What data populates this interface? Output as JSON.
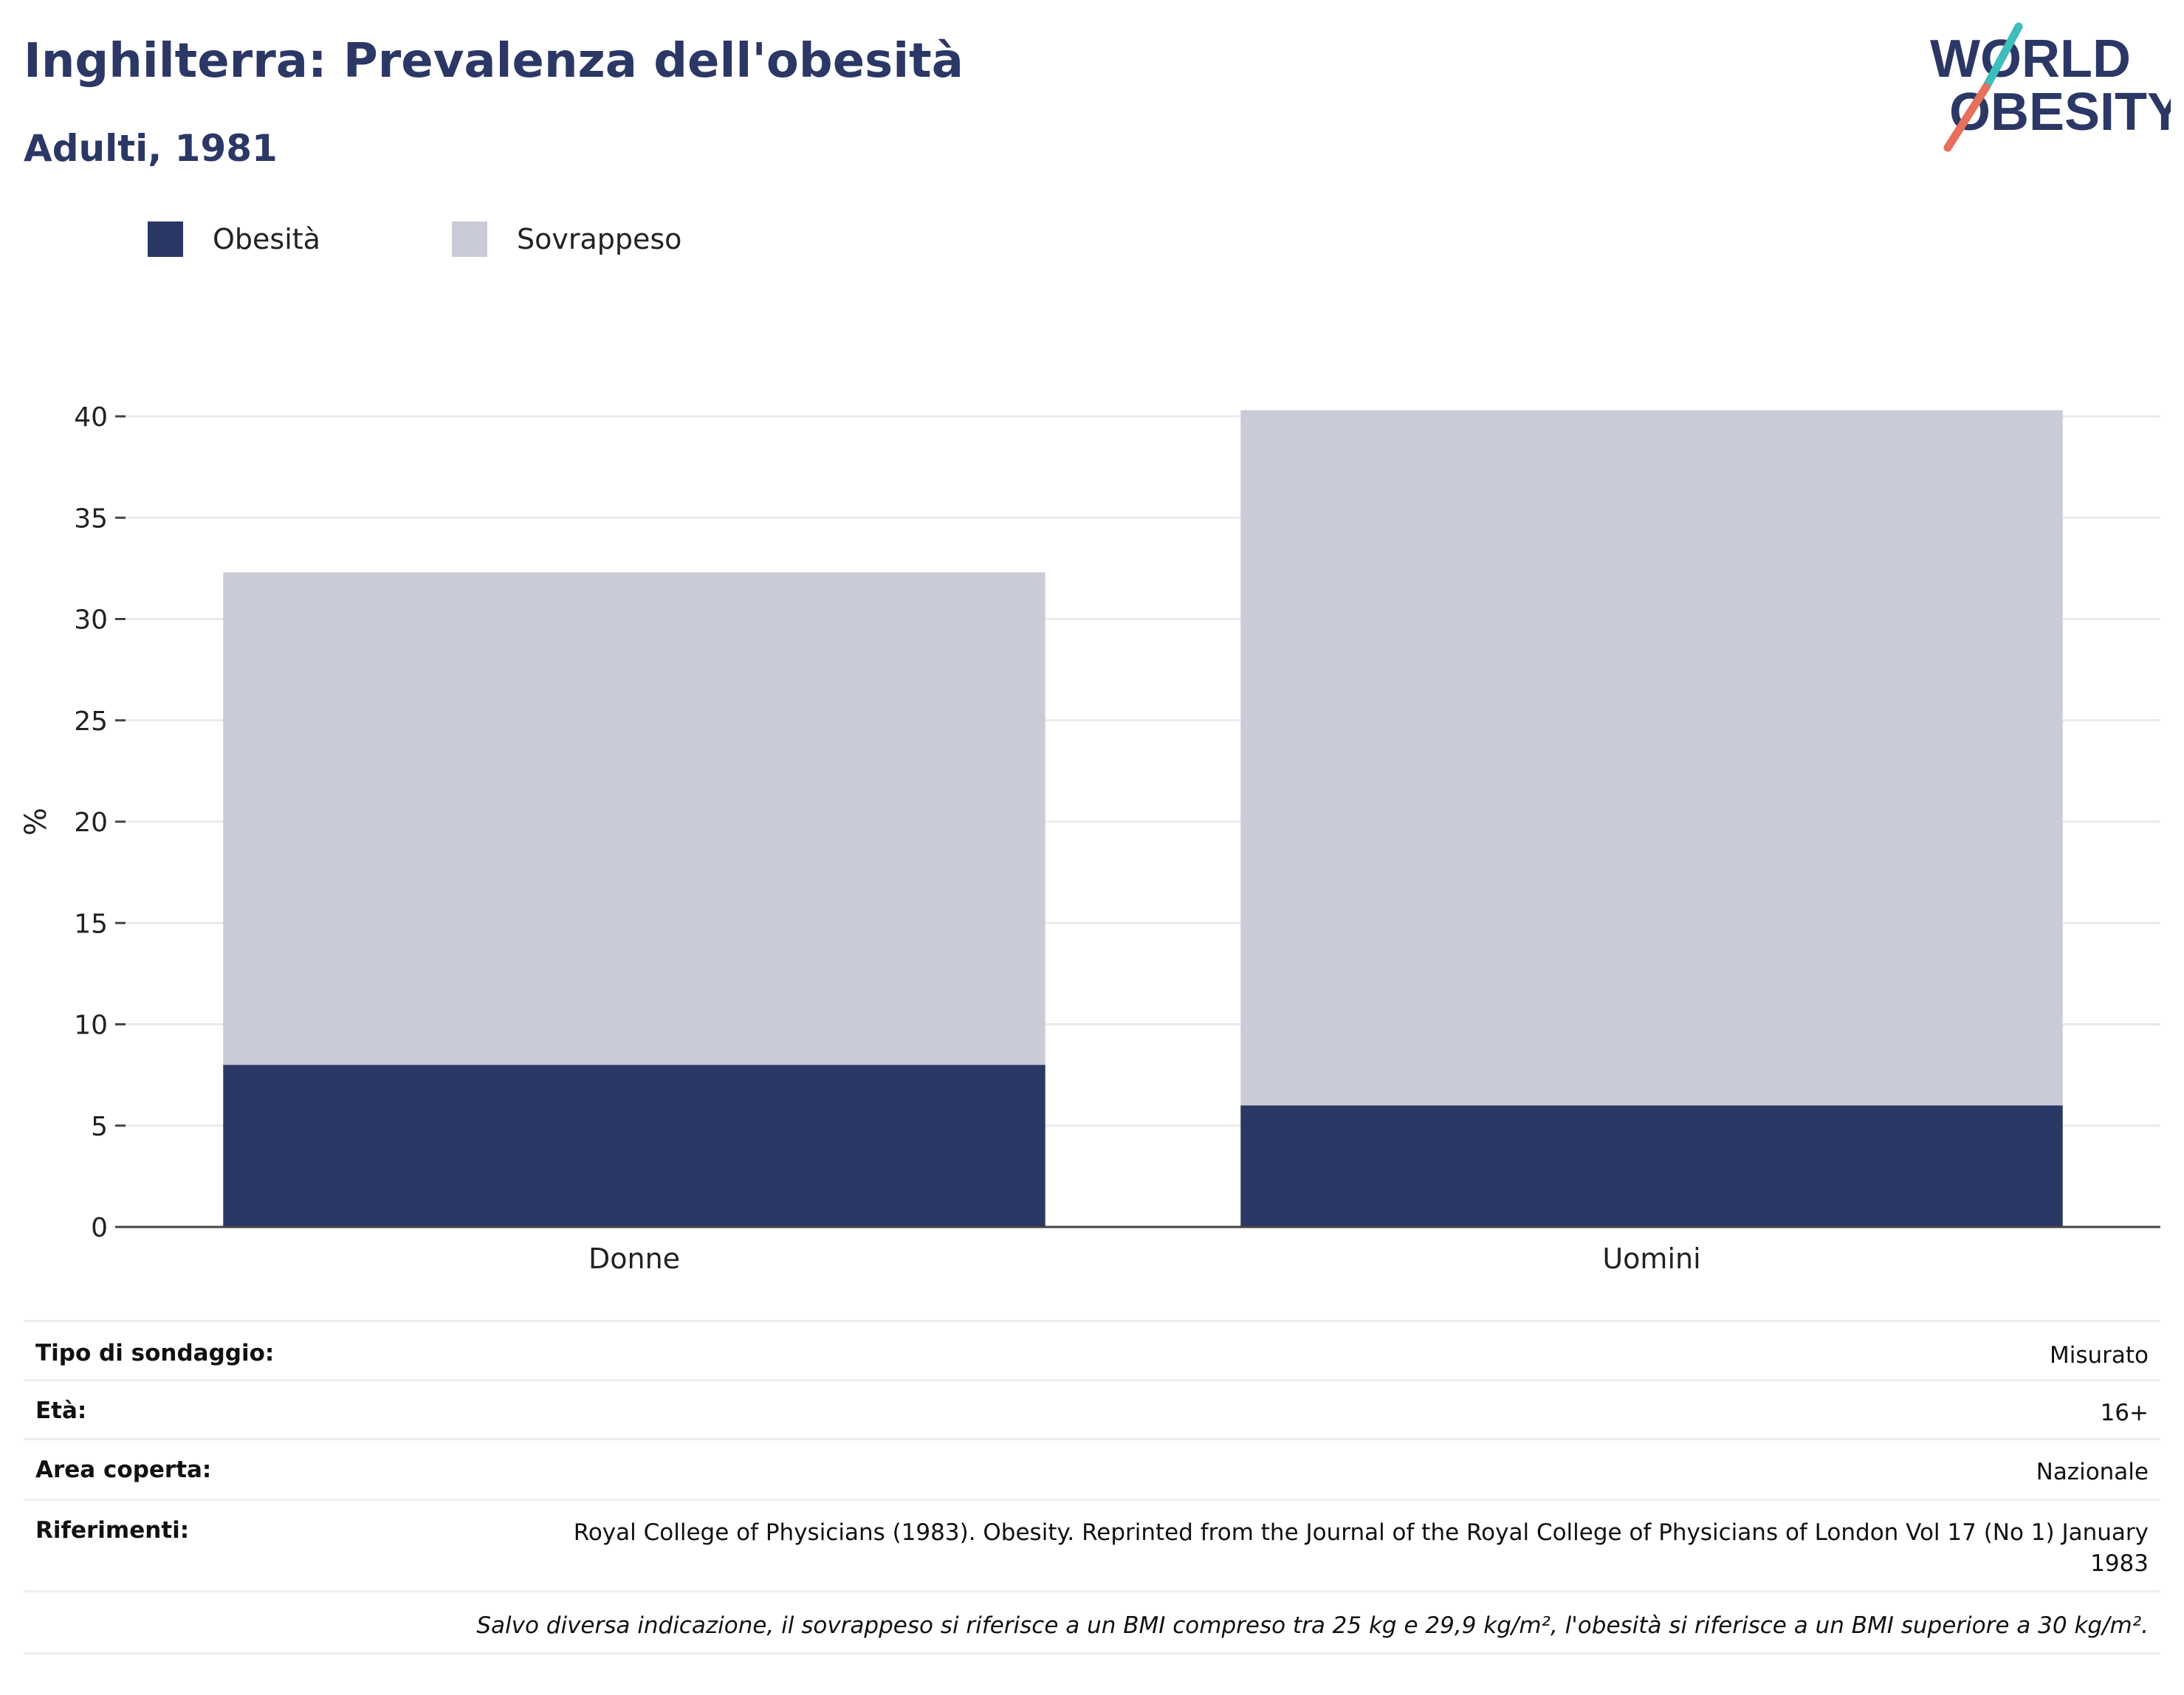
{
  "header": {
    "title": "Inghilterra: Prevalenza dell'obesità",
    "subtitle": "Adulti, 1981"
  },
  "logo": {
    "line1": "WORLD",
    "line2": "OBESITY",
    "colors": {
      "text": "#2b3765",
      "slash_top": "#3dbdbb",
      "slash_bottom": "#e5705b"
    }
  },
  "legend": {
    "items": [
      {
        "label": "Obesità",
        "color": "#2b3765"
      },
      {
        "label": "Sovrappeso",
        "color": "#c9ccd8"
      }
    ]
  },
  "chart_data": {
    "type": "bar",
    "stacked": true,
    "categories": [
      "Donne",
      "Uomini"
    ],
    "series": [
      {
        "name": "Obesità",
        "values": [
          8,
          6
        ],
        "color": "#2b3765"
      },
      {
        "name": "Sovrappeso",
        "values": [
          24.3,
          34.3
        ],
        "color": "#c9ccd8"
      }
    ],
    "ylabel": "%",
    "ylim": [
      0,
      40
    ],
    "yticks": [
      0,
      5,
      10,
      15,
      20,
      25,
      30,
      35,
      40
    ],
    "grid": true,
    "legend_position": "top-left"
  },
  "info": {
    "rows": [
      {
        "label": "Tipo di sondaggio:",
        "value": "Misurato"
      },
      {
        "label": "Età:",
        "value": "16+"
      },
      {
        "label": "Area coperta:",
        "value": "Nazionale"
      },
      {
        "label": "Riferimenti:",
        "value": "Royal College of Physicians (1983). Obesity. Reprinted from the Journal of the Royal College of Physicians of London Vol 17 (No 1) January 1983"
      }
    ],
    "note": "Salvo diversa indicazione, il sovrappeso si riferisce a un BMI compreso tra 25 kg e 29,9 kg/m², l'obesità si riferisce a un BMI superiore a 30 kg/m²."
  }
}
